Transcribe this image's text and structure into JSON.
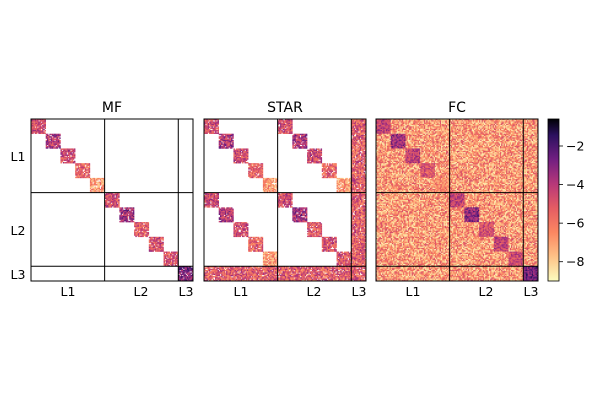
{
  "chart_data": {
    "type": "heatmap",
    "panels": [
      {
        "title": "MF",
        "pattern": "diagonal_blocks"
      },
      {
        "title": "STAR",
        "pattern": "layer_tied_blocks"
      },
      {
        "title": "FC",
        "pattern": "dense_with_blocks"
      }
    ],
    "layers": [
      "L1",
      "L2",
      "L3"
    ],
    "row_labels": [
      "L1",
      "L2",
      "L3"
    ],
    "col_labels": [
      "L1",
      "L2",
      "L3"
    ],
    "layer_sizes": [
      5,
      5,
      1
    ],
    "units_per_group": 12,
    "colorbar": {
      "colormap": "magma_r",
      "min": -9,
      "max": -0.6,
      "ticks": [
        -2,
        -4,
        -6,
        -8
      ],
      "tick_labels": [
        "−2",
        "−4",
        "−6",
        "−8"
      ]
    },
    "grid": false
  }
}
